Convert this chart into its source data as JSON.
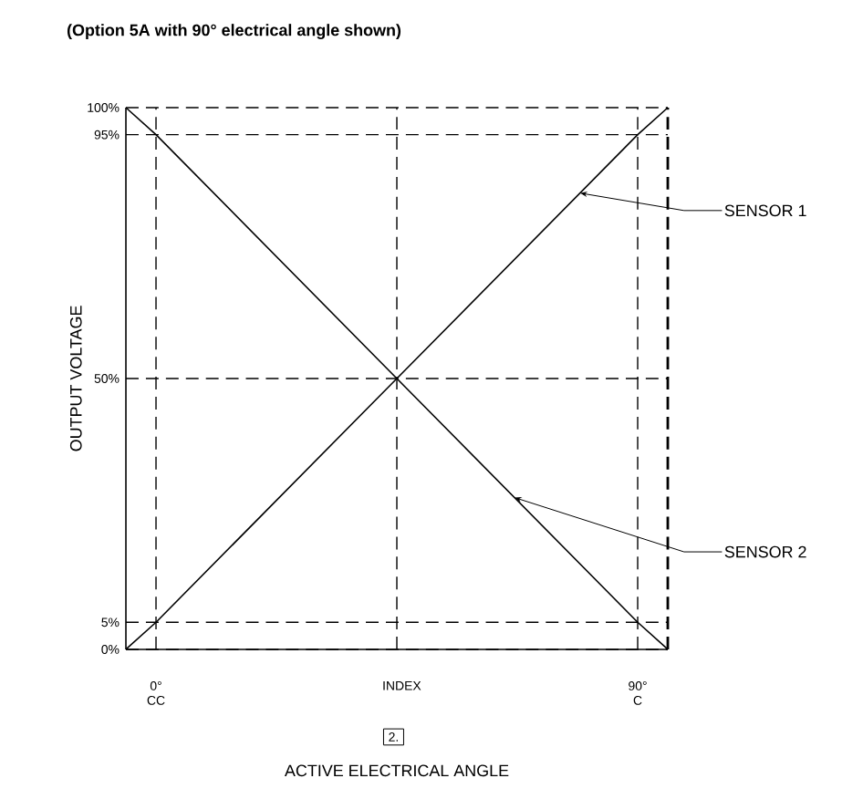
{
  "chart_data": {
    "type": "line",
    "title": "(Option 5A with 90° electrical angle shown)",
    "xlabel": "ACTIVE ELECTRICAL ANGLE",
    "ylabel": "OUTPUT VOLTAGE",
    "x": [
      -5.625,
      0,
      45,
      90,
      95.625
    ],
    "series": [
      {
        "name": "SENSOR 1",
        "color": "#000000",
        "values": [
          0,
          5,
          50,
          95,
          100
        ]
      },
      {
        "name": "SENSOR 2",
        "color": "#000000",
        "values": [
          100,
          95,
          50,
          5,
          0
        ]
      }
    ],
    "xlim": [
      -5.625,
      95.625
    ],
    "ylim": [
      0,
      100
    ],
    "xticks": [
      {
        "value": 0,
        "label": "0° CC"
      },
      {
        "value": 45,
        "label": "INDEX"
      },
      {
        "value": 90,
        "label": "90° C"
      }
    ],
    "yticks": [
      {
        "value": 0,
        "label": "0%"
      },
      {
        "value": 5,
        "label": "5%"
      },
      {
        "value": 50,
        "label": "50%"
      },
      {
        "value": 95,
        "label": "95%"
      },
      {
        "value": 100,
        "label": "100%"
      }
    ],
    "grid": true,
    "marker": "none",
    "line_style": "solid",
    "legend": false,
    "annotations": [
      "2."
    ]
  }
}
